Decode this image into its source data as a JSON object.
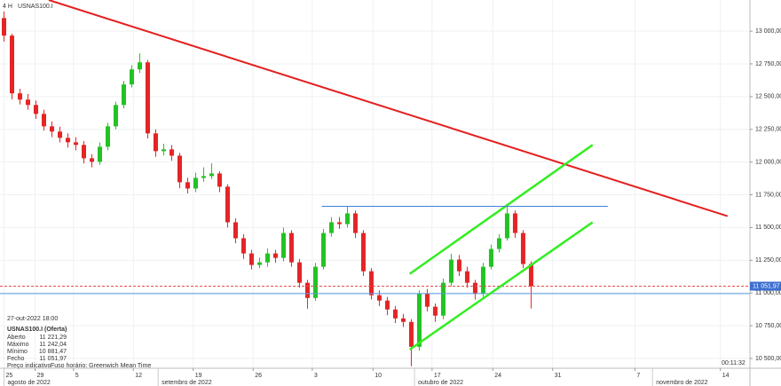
{
  "chart_data": {
    "type": "candlestick",
    "title": "USNAS100.I",
    "timeframe": "4 H",
    "up_color": "#22c322",
    "down_color": "#e52424",
    "grid": true,
    "xlim": [
      -0.5,
      93.4
    ],
    "ylim": [
      10425,
      13238
    ],
    "yticks": [
      {
        "value": 10500,
        "label": "10 500,00"
      },
      {
        "value": 10750,
        "label": "10 750,00"
      },
      {
        "value": 11000,
        "label": "11 000,00"
      },
      {
        "value": 11250,
        "label": "11 250,00"
      },
      {
        "value": 11500,
        "label": "11 500,00"
      },
      {
        "value": 11750,
        "label": "11 750,00"
      },
      {
        "value": 12000,
        "label": "12 000,00"
      },
      {
        "value": 12250,
        "label": "12 250,00"
      },
      {
        "value": 12500,
        "label": "12 500,00"
      },
      {
        "value": 12750,
        "label": "12 750,00"
      },
      {
        "value": 13000,
        "label": "13 000,00"
      }
    ],
    "xticks": [
      {
        "value": 0,
        "label": "25"
      },
      {
        "value": 3.9,
        "label": "29"
      },
      {
        "value": 8.7,
        "label": "5"
      },
      {
        "value": 16.2,
        "label": "12"
      },
      {
        "value": 23.7,
        "label": "19"
      },
      {
        "value": 31.2,
        "label": "26"
      },
      {
        "value": 38.6,
        "label": "3"
      },
      {
        "value": 46.2,
        "label": "10"
      },
      {
        "value": 53.6,
        "label": "17"
      },
      {
        "value": 61.2,
        "label": "24"
      },
      {
        "value": 68.7,
        "label": "31"
      },
      {
        "value": 79,
        "label": "7"
      },
      {
        "value": 89.7,
        "label": "14"
      }
    ],
    "month_ticks": [
      {
        "value": 0,
        "label": "agosto de 2022"
      },
      {
        "value": 19.3,
        "label": "setembro de 2022"
      },
      {
        "value": 51.4,
        "label": "outubro de 2022"
      },
      {
        "value": 81.2,
        "label": "novembro de 2022"
      }
    ],
    "open": [
      13100,
      12966,
      12525,
      12477,
      12436,
      12368,
      12273,
      12233,
      12185,
      12151,
      12131,
      12029,
      12002,
      12117,
      12273,
      12436,
      12593,
      12708,
      12762,
      12219,
      12083,
      12097,
      12049,
      11846,
      11798,
      11879,
      11893,
      11913,
      11812,
      11540,
      11418,
      11302,
      11214,
      11234,
      11302,
      11268,
      11458,
      11234,
      11078,
      10962,
      11200,
      11458,
      11540,
      11526,
      11608,
      11458,
      11166,
      10983,
      10942,
      10874,
      10806,
      10779,
      10589,
      10996,
      10895,
      10827,
      11078,
      11255,
      11166,
      11078,
      10996,
      11200,
      11336,
      11418,
      11608,
      11458,
      11221.29
    ],
    "high": [
      13150,
      12980,
      12560,
      12520,
      12470,
      12400,
      12310,
      12270,
      12220,
      12190,
      12160,
      12060,
      12150,
      12300,
      12460,
      12620,
      12740,
      12830,
      12780,
      12250,
      12140,
      12130,
      12070,
      11880,
      11920,
      11960,
      11990,
      11930,
      11830,
      11570,
      11450,
      11330,
      11270,
      11340,
      11330,
      11500,
      11480,
      11260,
      11100,
      11230,
      11490,
      11580,
      11580,
      11660,
      11630,
      11480,
      11190,
      11020,
      10970,
      10900,
      10840,
      10800,
      11020,
      11030,
      10920,
      11110,
      11300,
      11290,
      11200,
      11100,
      11230,
      11370,
      11450,
      11680,
      11630,
      11480,
      11242.04
    ],
    "low": [
      12920,
      12480,
      12440,
      12400,
      12330,
      12240,
      12190,
      12150,
      12110,
      12090,
      11990,
      11960,
      11980,
      12090,
      12250,
      12410,
      12570,
      12680,
      12180,
      12040,
      12050,
      12010,
      11800,
      11760,
      11770,
      11850,
      11870,
      11770,
      11500,
      11380,
      11260,
      11180,
      11190,
      11200,
      11230,
      11240,
      11200,
      11040,
      10880,
      10940,
      11180,
      11430,
      11490,
      11500,
      11420,
      11130,
      10950,
      10900,
      10830,
      10770,
      10740,
      10440,
      10560,
      10860,
      10780,
      10800,
      11050,
      11130,
      11040,
      10950,
      10970,
      11180,
      11310,
      11400,
      11420,
      11190,
      10881.47
    ],
    "close": [
      12966,
      12525,
      12477,
      12436,
      12368,
      12273,
      12233,
      12185,
      12151,
      12131,
      12029,
      12002,
      12117,
      12273,
      12436,
      12593,
      12708,
      12762,
      12219,
      12083,
      12097,
      12049,
      11846,
      11798,
      11879,
      11893,
      11913,
      11812,
      11540,
      11418,
      11302,
      11214,
      11234,
      11302,
      11268,
      11458,
      11234,
      11078,
      10962,
      11200,
      11458,
      11540,
      11526,
      11608,
      11458,
      11166,
      10983,
      10942,
      10874,
      10806,
      10779,
      10589,
      10996,
      10895,
      10827,
      11078,
      11255,
      11166,
      11078,
      10996,
      11200,
      11336,
      11418,
      11608,
      11458,
      11221.29,
      11051.97
    ],
    "trendlines": [
      {
        "color": "#e52020",
        "width": 2,
        "x": [
          5.6,
          90.6
        ],
        "y": [
          13238,
          11587
        ]
      },
      {
        "color": "#33ee22",
        "width": 2.5,
        "x": [
          50.8,
          73.7
        ],
        "y": [
          11146,
          12131
        ]
      },
      {
        "color": "#33ee22",
        "width": 2.5,
        "x": [
          50.8,
          73.7
        ],
        "y": [
          10568,
          11540
        ]
      },
      {
        "color": "#3d7fd9",
        "width": 1,
        "x": [
          39.8,
          75.6
        ],
        "y": [
          11662,
          11662
        ]
      }
    ],
    "hlines": [
      {
        "value": 10995,
        "color": "#5b9be6",
        "dashed": false
      },
      {
        "value": 11051.97,
        "label": "11 051,97",
        "color": "#e05050",
        "dashed": true
      }
    ],
    "info": {
      "datetime": "27-out-2022 18:00",
      "symbol": "USNAS100.I (Oferta)",
      "rows": [
        {
          "label": "Aberto",
          "value": "11 221,29"
        },
        {
          "label": "Máximo",
          "value": "11 242,04"
        },
        {
          "label": "Mínimo",
          "value": "10 881,47"
        },
        {
          "label": "Fecho",
          "value": "11 051,97"
        }
      ],
      "note": "Preço indicativo",
      "timezone": "Fuso horário: Greenwich Mean Time"
    },
    "timer": "00:11:32"
  }
}
